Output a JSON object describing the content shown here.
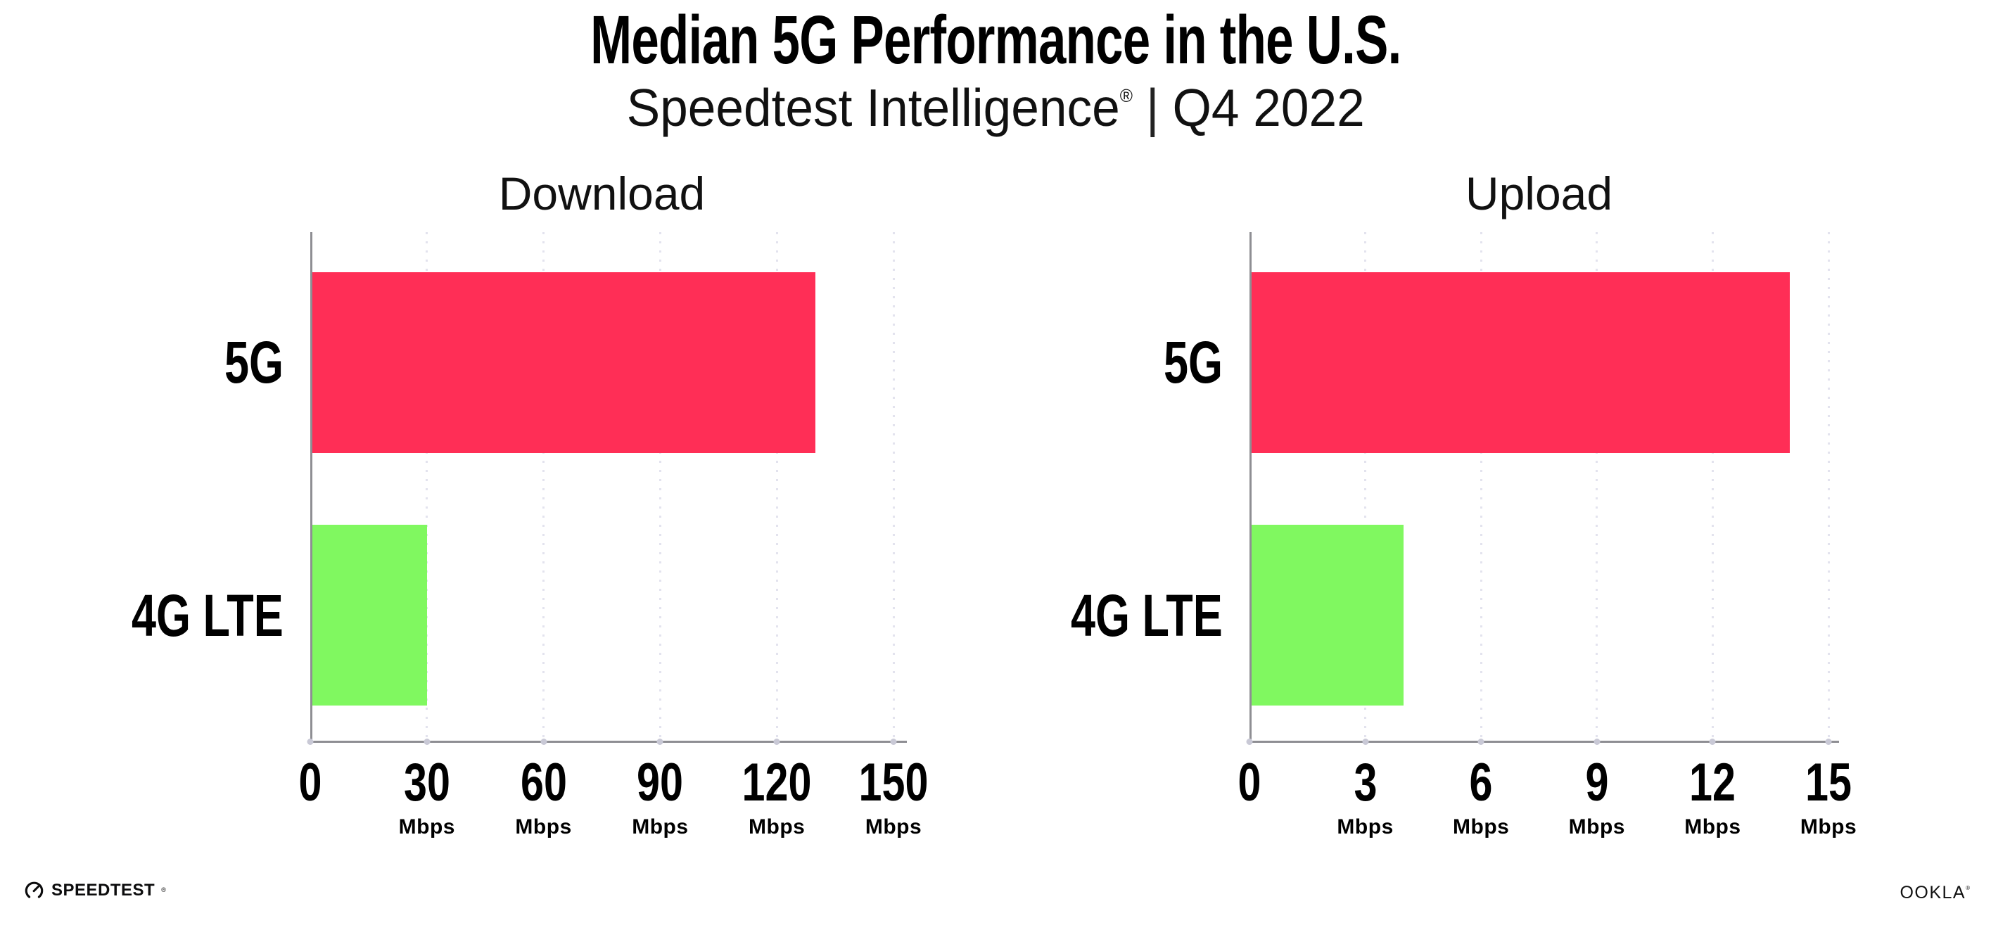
{
  "header": {
    "title": "Median 5G Performance in the U.S.",
    "subtitle": {
      "brand": "Speedtest Intelligence",
      "registered_mark": "®",
      "divider": "|",
      "period": "Q4 2022"
    }
  },
  "chart_data": [
    {
      "type": "bar",
      "orientation": "horizontal",
      "title": "Download",
      "categories": [
        "5G",
        "4G LTE"
      ],
      "values": [
        130,
        30
      ],
      "unit": "Mbps",
      "xlabel": "",
      "ylabel": "",
      "xlim": [
        0,
        150
      ],
      "xticks": [
        0,
        30,
        60,
        90,
        120,
        150
      ],
      "grid": "dotted vertical gridlines at each tick",
      "legend": "none",
      "bar_colors": [
        "#FF2E56",
        "#80F860"
      ]
    },
    {
      "type": "bar",
      "orientation": "horizontal",
      "title": "Upload",
      "categories": [
        "5G",
        "4G LTE"
      ],
      "values": [
        14,
        4
      ],
      "unit": "Mbps",
      "xlabel": "",
      "ylabel": "",
      "xlim": [
        0,
        15
      ],
      "xticks": [
        0,
        3,
        6,
        9,
        12,
        15
      ],
      "grid": "dotted vertical gridlines at each tick",
      "legend": "none",
      "bar_colors": [
        "#FF2E56",
        "#80F860"
      ]
    }
  ],
  "colors": {
    "bar_5g": "#FF2E56",
    "bar_4g_lte": "#80F860",
    "axis_line": "#8E8E93",
    "gridline_dots": "#E3E3EE",
    "tick_dots": "#C9C9D6",
    "text": "#000000",
    "background": "#FFFFFF"
  },
  "footer": {
    "speedtest": {
      "label": "SPEEDTEST",
      "mark": "®",
      "icon": "gauge-icon"
    },
    "ookla": {
      "label": "OOKLA",
      "mark": "®"
    }
  }
}
